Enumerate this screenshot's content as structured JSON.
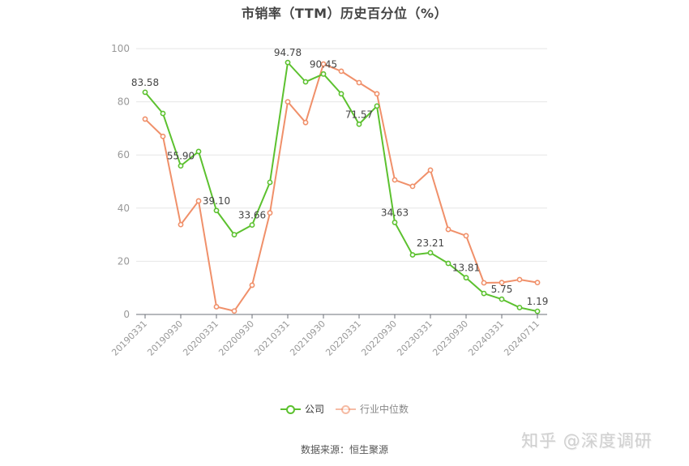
{
  "title": "市销率（TTM）历史百分位（%）",
  "legend": {
    "company": "公司",
    "industry": "行业中位数"
  },
  "source": "数据来源：恒生聚源",
  "watermark": "知乎 @深度调研",
  "colors": {
    "company": "#5cc12f",
    "industry": "#f0906a",
    "grid": "#e6e6e6",
    "axis": "#6e7079",
    "tick_label": "#999999",
    "data_label": "#444444"
  },
  "chart_data": {
    "type": "line",
    "title": "市销率（TTM）历史百分位（%）",
    "xlabel": "",
    "ylabel": "",
    "ylim": [
      0,
      100
    ],
    "yticks": [
      0,
      20,
      40,
      60,
      80,
      100
    ],
    "grid": true,
    "legend_position": "bottom",
    "x_tick_labels": [
      "20190331",
      "20190930",
      "20200331",
      "20200930",
      "20210331",
      "20210930",
      "20220331",
      "20220930",
      "20230331",
      "20230930",
      "20240331",
      "20240711"
    ],
    "x_tick_indices": [
      0,
      2,
      4,
      6,
      8,
      10,
      12,
      14,
      16,
      18,
      20,
      22
    ],
    "x": [
      "20190331",
      "20190630",
      "20190930",
      "20191231",
      "20200331",
      "20200630",
      "20200930",
      "20201231",
      "20210331",
      "20210630",
      "20210930",
      "20211231",
      "20220331",
      "20220630",
      "20220930",
      "20221231",
      "20230331",
      "20230630",
      "20230930",
      "20231231",
      "20240331",
      "20240630",
      "20240711"
    ],
    "series": [
      {
        "name": "公司",
        "values": [
          83.58,
          75.6,
          55.9,
          61.3,
          39.1,
          30.0,
          33.66,
          49.7,
          94.78,
          87.5,
          90.45,
          83.0,
          71.57,
          78.4,
          34.63,
          22.4,
          23.21,
          19.2,
          13.81,
          7.9,
          5.75,
          2.6,
          1.19
        ],
        "labeled_indices": [
          0,
          2,
          4,
          6,
          8,
          10,
          12,
          14,
          16,
          18,
          20,
          22
        ]
      },
      {
        "name": "行业中位数",
        "values": [
          73.5,
          67.0,
          33.8,
          42.7,
          2.9,
          1.3,
          11.0,
          38.2,
          80.0,
          72.2,
          94.2,
          91.5,
          87.2,
          83.0,
          50.6,
          48.2,
          54.3,
          32.0,
          29.6,
          11.9,
          12.0,
          13.1,
          12.0
        ]
      }
    ]
  }
}
